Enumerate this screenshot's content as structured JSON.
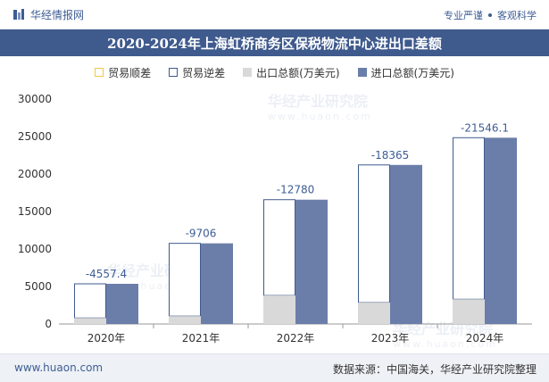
{
  "header": {
    "brand": "华经情报网",
    "tagline_left": "专业严谨",
    "tagline_right": "客观科学"
  },
  "footer": {
    "website": "www.huaon.com",
    "source": "数据来源：中国海关，华经产业研究院整理"
  },
  "watermarks": {
    "name": "华经产业研究院",
    "url": "www.huaon.com"
  },
  "colors": {
    "title_bg": "#3f5a8d",
    "surplus": "#f3c744",
    "deficit": "#3f5a8d",
    "export": "#d9d9d9",
    "import": "#6b7ea9"
  },
  "chart_data": {
    "type": "bar",
    "title": "2020-2024年上海虹桥商务区保税物流中心进出口差额",
    "categories": [
      "2020年",
      "2021年",
      "2022年",
      "2023年",
      "2024年"
    ],
    "series": [
      {
        "name": "贸易顺差",
        "values": [
          0,
          0,
          0,
          0,
          0
        ]
      },
      {
        "name": "贸易逆差",
        "values": [
          -4557.4,
          -9706,
          -12780,
          -18365,
          -21546.1
        ]
      },
      {
        "name": "出口总额(万美元)",
        "values": [
          800,
          1050,
          3800,
          2850,
          3300
        ]
      },
      {
        "name": "进口总额(万美元)",
        "values": [
          5357.4,
          10756,
          16580,
          21215,
          24846.1
        ]
      }
    ],
    "data_labels": [
      "-4557.4",
      "-9706",
      "-12780",
      "-18365",
      "-21546.1"
    ],
    "ylim": [
      0,
      30000
    ],
    "yticks": [
      0,
      5000,
      10000,
      15000,
      20000,
      25000,
      30000
    ],
    "ytick_labels": [
      "0",
      "5000",
      "10000",
      "15000",
      "20000",
      "25000",
      "30000"
    ],
    "xlabel": "",
    "ylabel": "",
    "grid": false,
    "legend": "top-center"
  }
}
